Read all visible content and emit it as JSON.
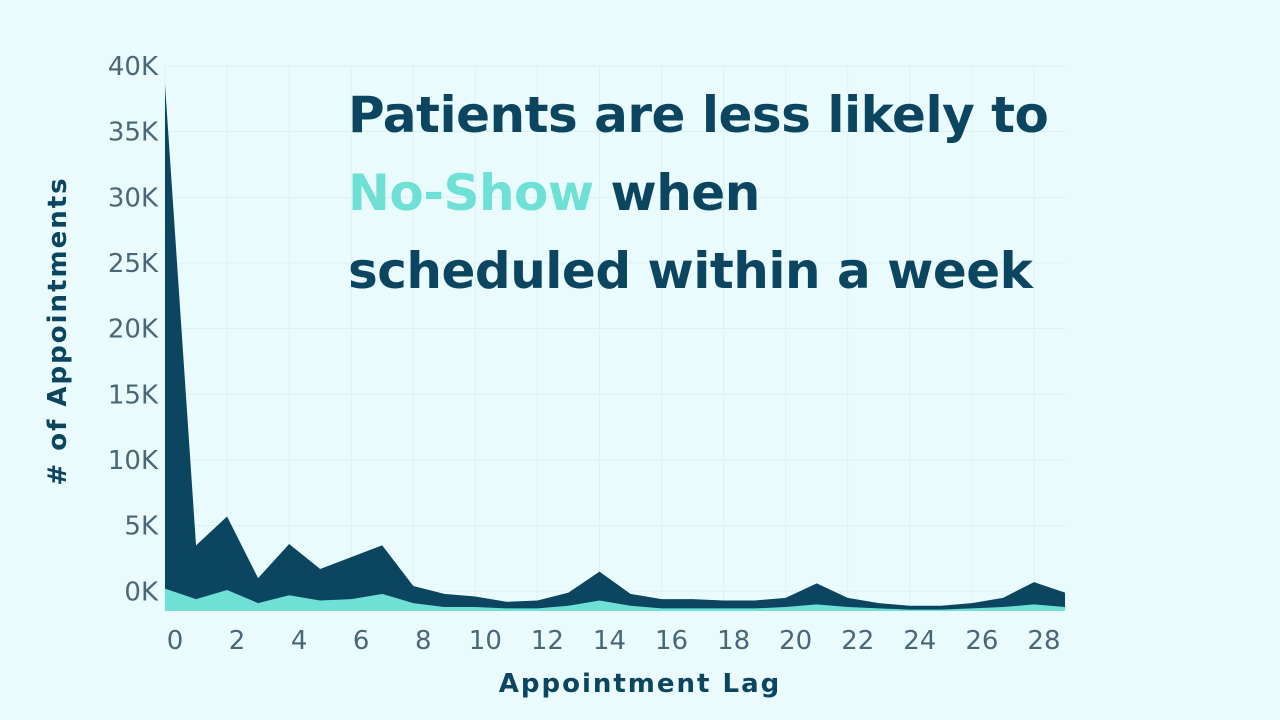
{
  "headline": {
    "line1": "Patients are less likely to",
    "highlight": "No-Show",
    "line2_rest": " when",
    "line3": "scheduled within a week"
  },
  "colors": {
    "background": "#eafbfd",
    "total_area": "#0b4560",
    "noshow_area": "#6ee0d6",
    "headline_text": "#0b4560",
    "highlight_text": "#6ee0d6"
  },
  "chart_data": {
    "type": "area",
    "xlabel": "Appointment Lag",
    "ylabel": "# of Appointments",
    "x": [
      0,
      1,
      2,
      3,
      4,
      5,
      6,
      7,
      8,
      9,
      10,
      11,
      12,
      13,
      14,
      15,
      16,
      17,
      18,
      19,
      20,
      21,
      22,
      23,
      24,
      25,
      26,
      27,
      28,
      29
    ],
    "ylim": [
      -1500,
      40000
    ],
    "xlim": [
      0,
      29
    ],
    "yticks": [
      0,
      5000,
      10000,
      15000,
      20000,
      25000,
      30000,
      35000,
      40000
    ],
    "ytick_labels": [
      "0K",
      "5K",
      "10K",
      "15K",
      "20K",
      "25K",
      "30K",
      "35K",
      "40K"
    ],
    "xticks": [
      0,
      2,
      4,
      6,
      8,
      10,
      12,
      14,
      16,
      18,
      20,
      22,
      24,
      26,
      28
    ],
    "xtick_labels": [
      "0",
      "2",
      "4",
      "6",
      "8",
      "10",
      "12",
      "14",
      "16",
      "18",
      "20",
      "22",
      "24",
      "26",
      "28"
    ],
    "grid": true,
    "series": [
      {
        "values": [
          38600,
          3500,
          5700,
          1000,
          3600,
          1700,
          2600,
          3500,
          400,
          -200,
          -400,
          -800,
          -700,
          -100,
          1500,
          -200,
          -600,
          -600,
          -700,
          -700,
          -500,
          600,
          -500,
          -900,
          -1100,
          -1100,
          -900,
          -500,
          700,
          -100
        ]
      },
      {
        "values": [
          200,
          -600,
          100,
          -900,
          -300,
          -700,
          -600,
          -200,
          -900,
          -1200,
          -1200,
          -1300,
          -1300,
          -1100,
          -700,
          -1100,
          -1300,
          -1300,
          -1300,
          -1300,
          -1200,
          -1000,
          -1200,
          -1300,
          -1400,
          -1400,
          -1300,
          -1200,
          -1000,
          -1200
        ]
      }
    ]
  }
}
